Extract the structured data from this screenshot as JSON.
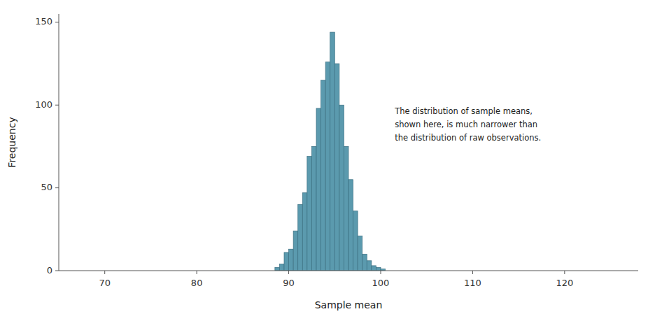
{
  "chart_data": {
    "type": "histogram",
    "xlabel": "Sample mean",
    "ylabel": "Frequency",
    "annotation": "The distribution of sample means,\nshown here, is much narrower than\nthe distribution of raw observations.",
    "bins": [
      88.5,
      89.0,
      89.5,
      90.0,
      90.5,
      91.0,
      91.5,
      92.0,
      92.5,
      93.0,
      93.5,
      94.0,
      94.5,
      95.0,
      95.5,
      96.0,
      96.5,
      97.0,
      97.5,
      98.0,
      98.5,
      99.0,
      99.5,
      100.0,
      100.5
    ],
    "values": [
      2,
      4,
      11,
      13,
      24,
      40,
      47,
      69,
      75,
      98,
      115,
      126,
      144,
      125,
      100,
      75,
      55,
      36,
      21,
      10,
      6,
      3,
      2,
      1
    ],
    "color": "#5b9aae",
    "xlim": [
      65,
      128
    ],
    "ylim": [
      0,
      155
    ],
    "xticks": [
      70,
      80,
      90,
      100,
      110,
      120
    ],
    "yticks": [
      0,
      50,
      100,
      150
    ],
    "grid": false
  }
}
